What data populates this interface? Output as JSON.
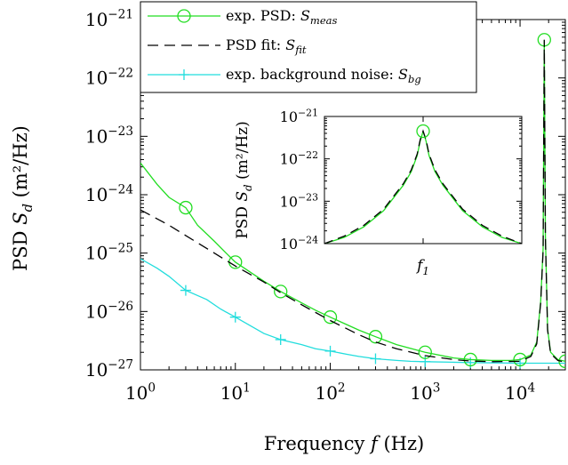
{
  "chart_data": [
    {
      "type": "line",
      "xlabel": {
        "text": "Frequency ",
        "italic": "f",
        "unit": " (Hz)"
      },
      "ylabel": {
        "text": "PSD ",
        "italic": "S",
        "sub": "d",
        "unit": " (m²/Hz)"
      },
      "xscale": "log",
      "yscale": "log",
      "xlim": [
        1,
        30000
      ],
      "ylim": [
        1e-27,
        1e-21
      ],
      "x_ticks": [
        {
          "base": "10",
          "exp": "0"
        },
        {
          "base": "10",
          "exp": "1"
        },
        {
          "base": "10",
          "exp": "2"
        },
        {
          "base": "10",
          "exp": "3"
        },
        {
          "base": "10",
          "exp": "4"
        }
      ],
      "y_ticks": [
        {
          "base": "10",
          "exp": "−27"
        },
        {
          "base": "10",
          "exp": "−26"
        },
        {
          "base": "10",
          "exp": "−25"
        },
        {
          "base": "10",
          "exp": "−24"
        },
        {
          "base": "10",
          "exp": "−23"
        },
        {
          "base": "10",
          "exp": "−22"
        },
        {
          "base": "10",
          "exp": "−21"
        }
      ],
      "legend_position": "top-right",
      "series": [
        {
          "name": "exp. PSD: ",
          "name_italic": "S",
          "name_sub": "meas",
          "color": "#22dd22",
          "style": "solid",
          "marker": "circle",
          "x": [
            1,
            1.5,
            2,
            3,
            4,
            6,
            8,
            10,
            15,
            20,
            30,
            50,
            70,
            100,
            200,
            300,
            500,
            1000,
            2000,
            3000,
            5000,
            8000,
            10000,
            13000,
            15000,
            16500,
            17500,
            18000,
            18500,
            19500,
            21000,
            25000,
            30000
          ],
          "y": [
            3.5e-24,
            1.5e-24,
            9e-25,
            6e-25,
            3e-25,
            1.6e-25,
            1e-25,
            7e-26,
            4.5e-26,
            3.3e-26,
            2.2e-26,
            1.4e-26,
            1.05e-26,
            8e-27,
            4.8e-27,
            3.7e-27,
            2.7e-27,
            2e-27,
            1.6e-27,
            1.5e-27,
            1.45e-27,
            1.45e-27,
            1.5e-27,
            1.8e-27,
            3e-27,
            1.5e-26,
            1.2e-25,
            4.5e-22,
            2e-25,
            5e-27,
            2e-27,
            1.5e-27,
            1.4e-27
          ],
          "markers_x": [
            3,
            10,
            30,
            100,
            300,
            1000,
            3000,
            10000,
            18000,
            30000
          ]
        },
        {
          "name": "PSD fit: ",
          "name_italic": "S",
          "name_sub": "fit",
          "color": "#000000",
          "style": "dashed",
          "marker": "none",
          "x": [
            1,
            2,
            3,
            5,
            10,
            20,
            30,
            50,
            100,
            200,
            300,
            500,
            1000,
            2000,
            3000,
            5000,
            10000,
            13000,
            15000,
            16500,
            17500,
            18000,
            18500,
            19500,
            21000,
            25000,
            30000
          ],
          "y": [
            5.5e-25,
            3e-25,
            2e-25,
            1.2e-25,
            6e-26,
            3.2e-26,
            2.1e-26,
            1.3e-26,
            7e-27,
            4e-27,
            3e-27,
            2.3e-27,
            1.75e-27,
            1.5e-27,
            1.42e-27,
            1.38e-27,
            1.4e-27,
            1.7e-27,
            2.8e-27,
            1.4e-26,
            1.1e-25,
            4.5e-22,
            1.8e-25,
            4.8e-27,
            1.9e-27,
            1.45e-27,
            1.35e-27
          ]
        },
        {
          "name": "exp. background noise: ",
          "name_italic": "S",
          "name_sub": "bg",
          "color": "#22dddd",
          "style": "solid",
          "marker": "plus",
          "x": [
            1,
            1.5,
            2,
            3,
            5,
            7,
            10,
            15,
            20,
            30,
            50,
            70,
            100,
            150,
            200,
            300,
            500,
            700,
            1000,
            2000,
            3000,
            5000,
            10000,
            15000,
            20000,
            30000
          ],
          "y": [
            8e-26,
            5.5e-26,
            4e-26,
            2.3e-26,
            1.6e-26,
            1.1e-26,
            8e-27,
            5.5e-27,
            4.2e-27,
            3.3e-27,
            2.7e-27,
            2.3e-27,
            2.1e-27,
            1.85e-27,
            1.7e-27,
            1.55e-27,
            1.45e-27,
            1.4e-27,
            1.38e-27,
            1.35e-27,
            1.33e-27,
            1.32e-27,
            1.3e-27,
            1.3e-27,
            1.3e-27,
            1.3e-27
          ],
          "markers_x": [
            3,
            10,
            30,
            100,
            300,
            1000,
            3000,
            10000
          ]
        }
      ]
    },
    {
      "type": "line",
      "role": "inset",
      "xlabel": {
        "italic": "f",
        "sub": "1"
      },
      "ylabel": {
        "text": "PSD ",
        "italic": "S",
        "sub": "d",
        "unit": " (m²/Hz)"
      },
      "yscale": "log",
      "xlim": [
        -1,
        1
      ],
      "ylim": [
        1e-24,
        1e-21
      ],
      "y_ticks": [
        {
          "base": "10",
          "exp": "−24"
        },
        {
          "base": "10",
          "exp": "−23"
        },
        {
          "base": "10",
          "exp": "−22"
        },
        {
          "base": "10",
          "exp": "−21"
        }
      ],
      "series": [
        {
          "color": "#22dd22",
          "style": "solid",
          "marker": "circle",
          "x": [
            -1,
            -0.8,
            -0.6,
            -0.4,
            -0.3,
            -0.2,
            -0.12,
            -0.06,
            -0.03,
            0,
            0.03,
            0.06,
            0.12,
            0.2,
            0.3,
            0.4,
            0.6,
            0.8,
            1
          ],
          "y": [
            1e-24,
            1.4e-24,
            2.5e-24,
            6e-24,
            1.2e-23,
            2.4e-23,
            5e-23,
            1.2e-22,
            2.6e-22,
            4.5e-22,
            2.6e-22,
            1.2e-22,
            5e-23,
            2.4e-23,
            1.2e-23,
            6e-24,
            2.5e-24,
            1.4e-24,
            1e-24
          ],
          "markers_x": [
            0
          ]
        },
        {
          "color": "#000000",
          "style": "dashed",
          "marker": "none",
          "x": [
            -1,
            -0.8,
            -0.6,
            -0.4,
            -0.3,
            -0.2,
            -0.12,
            -0.06,
            -0.03,
            0,
            0.03,
            0.06,
            0.12,
            0.2,
            0.3,
            0.4,
            0.6,
            0.8,
            1
          ],
          "y": [
            1e-24,
            1.5e-24,
            2.7e-24,
            6.5e-24,
            1.3e-23,
            2.6e-23,
            5.5e-23,
            1.3e-22,
            2.8e-22,
            4.5e-22,
            2.8e-22,
            1.3e-22,
            5.5e-23,
            2.6e-23,
            1.3e-23,
            6.5e-24,
            2.7e-24,
            1.5e-24,
            1e-24
          ]
        }
      ]
    }
  ]
}
